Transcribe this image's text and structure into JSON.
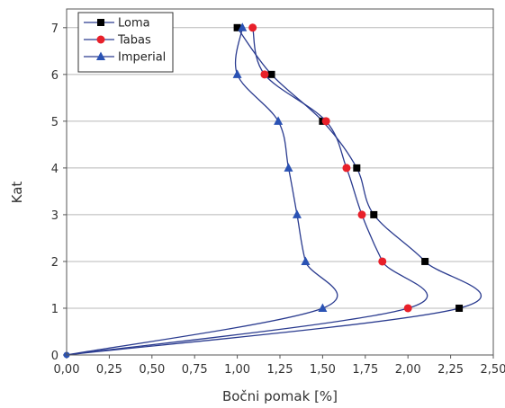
{
  "chart_data": {
    "type": "line",
    "xlabel": "Bočni pomak  [%]",
    "ylabel": "Kat",
    "xlim": [
      0,
      2.5
    ],
    "ylim": [
      0,
      7.4
    ],
    "xticks": [
      0,
      0.25,
      0.5,
      0.75,
      1.0,
      1.25,
      1.5,
      1.75,
      2.0,
      2.25,
      2.5
    ],
    "xtick_labels": [
      "0,00",
      "0,25",
      "0,50",
      "0,75",
      "1,00",
      "1,25",
      "1,50",
      "1,75",
      "2,00",
      "2,25",
      "2,50"
    ],
    "yticks": [
      0,
      1,
      2,
      3,
      4,
      5,
      6,
      7
    ],
    "ytick_labels": [
      "0",
      "1",
      "2",
      "3",
      "4",
      "5",
      "6",
      "7"
    ],
    "grid": "horizontal",
    "legend_position": "top-left",
    "y": [
      0,
      1,
      2,
      3,
      4,
      5,
      6,
      7
    ],
    "series": [
      {
        "name": "Loma",
        "marker": "square",
        "color": "#000000",
        "line_color": "#2a3b8f",
        "x": [
          0,
          2.3,
          2.1,
          1.8,
          1.7,
          1.5,
          1.2,
          1.0
        ]
      },
      {
        "name": "Tabas",
        "marker": "circle",
        "color": "#e8202a",
        "line_color": "#2a3b8f",
        "x": [
          0,
          2.0,
          1.85,
          1.73,
          1.64,
          1.52,
          1.16,
          1.09
        ]
      },
      {
        "name": "Imperial",
        "marker": "triangle",
        "color": "#2a52b4",
        "line_color": "#2a3b8f",
        "x": [
          0,
          1.5,
          1.4,
          1.35,
          1.3,
          1.24,
          1.0,
          1.03
        ]
      }
    ]
  }
}
